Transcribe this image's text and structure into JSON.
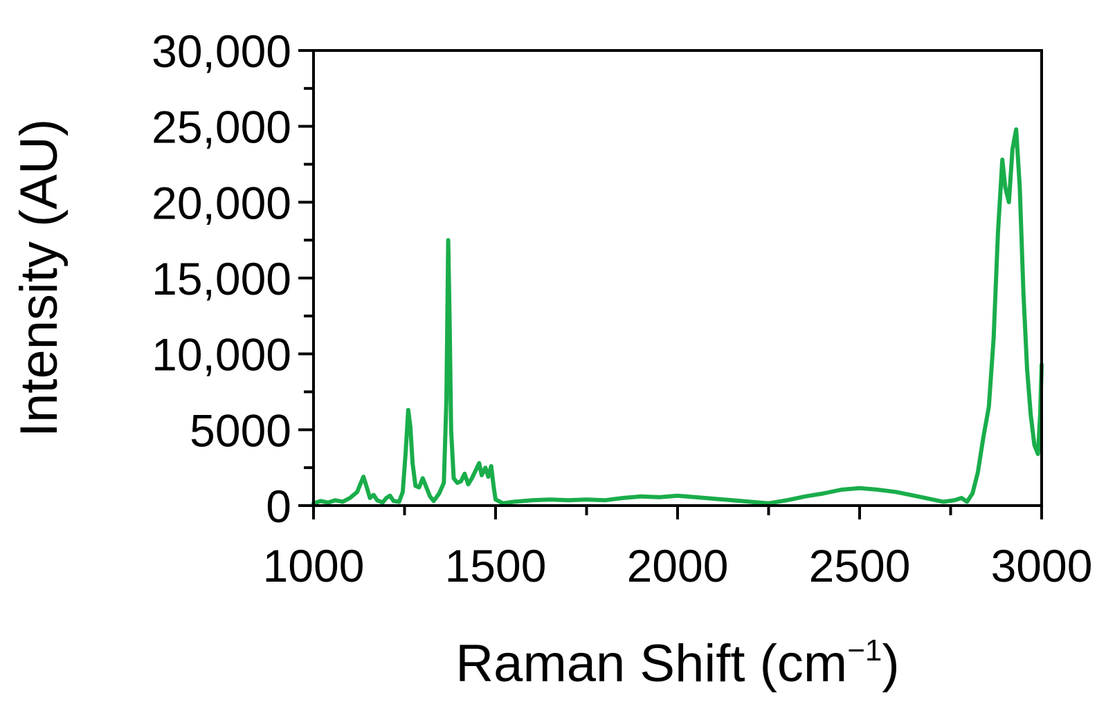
{
  "chart_data": {
    "type": "line",
    "title": "",
    "xlabel": "Raman Shift (cm",
    "xlabel_sup": "−1",
    "xlabel_close": ")",
    "ylabel": "Intensity (AU)",
    "xlim": [
      1000,
      3000
    ],
    "ylim": [
      0,
      30000
    ],
    "grid": false,
    "legend": "none",
    "x_ticks": [
      1000,
      1500,
      2000,
      2500,
      3000
    ],
    "x_tick_labels": [
      "1000",
      "1500",
      "2000",
      "2500",
      "3000"
    ],
    "x_minor_ticks": [
      1250,
      1750,
      2250,
      2750
    ],
    "y_ticks": [
      0,
      5000,
      10000,
      15000,
      20000,
      25000,
      30000
    ],
    "y_tick_labels": [
      "0",
      "5000",
      "10,000",
      "15,000",
      "20,000",
      "25,000",
      "30,000"
    ],
    "y_minor_step": 2500,
    "series": [
      {
        "color": "#1aad4b",
        "points": [
          [
            1000,
            150
          ],
          [
            1020,
            300
          ],
          [
            1040,
            200
          ],
          [
            1060,
            350
          ],
          [
            1080,
            250
          ],
          [
            1100,
            500
          ],
          [
            1120,
            900
          ],
          [
            1130,
            1500
          ],
          [
            1137,
            1900
          ],
          [
            1145,
            1300
          ],
          [
            1155,
            500
          ],
          [
            1165,
            700
          ],
          [
            1175,
            350
          ],
          [
            1190,
            200
          ],
          [
            1200,
            500
          ],
          [
            1210,
            650
          ],
          [
            1220,
            300
          ],
          [
            1235,
            250
          ],
          [
            1245,
            900
          ],
          [
            1253,
            3500
          ],
          [
            1260,
            6300
          ],
          [
            1266,
            5200
          ],
          [
            1272,
            2800
          ],
          [
            1280,
            1300
          ],
          [
            1290,
            1200
          ],
          [
            1300,
            1800
          ],
          [
            1310,
            1200
          ],
          [
            1320,
            600
          ],
          [
            1330,
            300
          ],
          [
            1345,
            800
          ],
          [
            1358,
            1500
          ],
          [
            1365,
            7000
          ],
          [
            1370,
            17500
          ],
          [
            1374,
            12000
          ],
          [
            1378,
            5000
          ],
          [
            1385,
            1800
          ],
          [
            1395,
            1500
          ],
          [
            1405,
            1600
          ],
          [
            1415,
            2100
          ],
          [
            1425,
            1400
          ],
          [
            1435,
            1800
          ],
          [
            1445,
            2300
          ],
          [
            1455,
            2800
          ],
          [
            1462,
            2000
          ],
          [
            1472,
            2500
          ],
          [
            1480,
            1900
          ],
          [
            1488,
            2600
          ],
          [
            1495,
            1200
          ],
          [
            1500,
            400
          ],
          [
            1520,
            150
          ],
          [
            1550,
            250
          ],
          [
            1600,
            350
          ],
          [
            1650,
            400
          ],
          [
            1700,
            350
          ],
          [
            1750,
            400
          ],
          [
            1800,
            350
          ],
          [
            1850,
            500
          ],
          [
            1900,
            600
          ],
          [
            1950,
            550
          ],
          [
            2000,
            650
          ],
          [
            2050,
            550
          ],
          [
            2100,
            450
          ],
          [
            2150,
            350
          ],
          [
            2200,
            250
          ],
          [
            2250,
            150
          ],
          [
            2300,
            350
          ],
          [
            2350,
            600
          ],
          [
            2400,
            800
          ],
          [
            2450,
            1050
          ],
          [
            2500,
            1150
          ],
          [
            2550,
            1050
          ],
          [
            2600,
            900
          ],
          [
            2650,
            650
          ],
          [
            2700,
            400
          ],
          [
            2730,
            250
          ],
          [
            2760,
            350
          ],
          [
            2780,
            500
          ],
          [
            2795,
            250
          ],
          [
            2810,
            800
          ],
          [
            2825,
            2200
          ],
          [
            2840,
            4500
          ],
          [
            2855,
            6500
          ],
          [
            2868,
            11000
          ],
          [
            2880,
            18000
          ],
          [
            2892,
            22800
          ],
          [
            2900,
            21000
          ],
          [
            2910,
            20000
          ],
          [
            2920,
            23500
          ],
          [
            2930,
            24800
          ],
          [
            2940,
            21000
          ],
          [
            2950,
            14000
          ],
          [
            2960,
            9000
          ],
          [
            2970,
            6000
          ],
          [
            2980,
            4000
          ],
          [
            2990,
            3400
          ],
          [
            2996,
            6000
          ],
          [
            3000,
            9300
          ]
        ]
      }
    ]
  }
}
